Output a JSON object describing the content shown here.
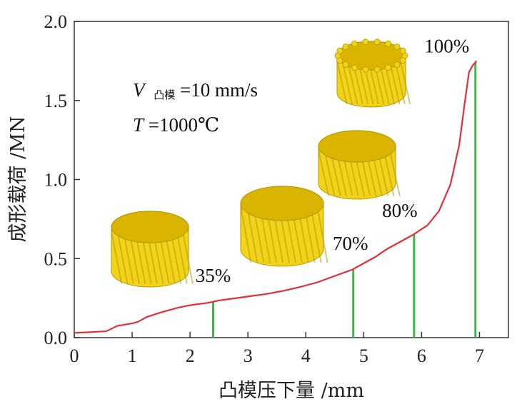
{
  "chart_data": {
    "type": "line",
    "title": "",
    "xlabel": "凸模压下量 /mm",
    "ylabel": "成形载荷 /MN",
    "xlim": [
      0,
      7.5
    ],
    "ylim": [
      0,
      2.0
    ],
    "xticks": [
      "0",
      "1",
      "2",
      "3",
      "4",
      "5",
      "6",
      "7"
    ],
    "yticks": [
      "0.0",
      "0.5",
      "1.0",
      "1.5",
      "2.0"
    ],
    "grid": false,
    "series": [
      {
        "color": "#e0303a",
        "x": [
          0,
          0.3,
          0.55,
          0.75,
          1.0,
          1.1,
          1.25,
          1.5,
          1.8,
          2.0,
          2.3,
          2.5,
          2.8,
          3.0,
          3.3,
          3.6,
          3.9,
          4.2,
          4.5,
          4.8,
          5.0,
          5.2,
          5.4,
          5.6,
          5.85,
          6.1,
          6.3,
          6.5,
          6.65,
          6.75,
          6.82,
          6.88,
          6.95
        ],
        "y": [
          0.03,
          0.035,
          0.04,
          0.075,
          0.09,
          0.1,
          0.13,
          0.16,
          0.19,
          0.205,
          0.22,
          0.235,
          0.25,
          0.26,
          0.275,
          0.295,
          0.32,
          0.35,
          0.39,
          0.43,
          0.47,
          0.51,
          0.56,
          0.6,
          0.65,
          0.71,
          0.8,
          0.97,
          1.22,
          1.5,
          1.68,
          1.72,
          1.75
        ]
      }
    ],
    "markers": [
      {
        "x": 2.4,
        "y": 0.225,
        "label": "35%"
      },
      {
        "x": 4.82,
        "y": 0.43,
        "label": "70%"
      },
      {
        "x": 5.87,
        "y": 0.655,
        "label": "80%"
      },
      {
        "x": 6.93,
        "y": 1.74,
        "label": "100%"
      }
    ],
    "annotations": {
      "speed_var": "V",
      "speed_sub": "凸模",
      "speed_val": "=10 mm/s",
      "temp_var": "T",
      "temp_val": "=1000℃"
    },
    "colors": {
      "curve": "#e0303a",
      "marker_line": "#3cb44a",
      "gear_face": "#d9b400",
      "gear_side": "#f2d31b",
      "gear_dark": "#b89a00"
    }
  }
}
